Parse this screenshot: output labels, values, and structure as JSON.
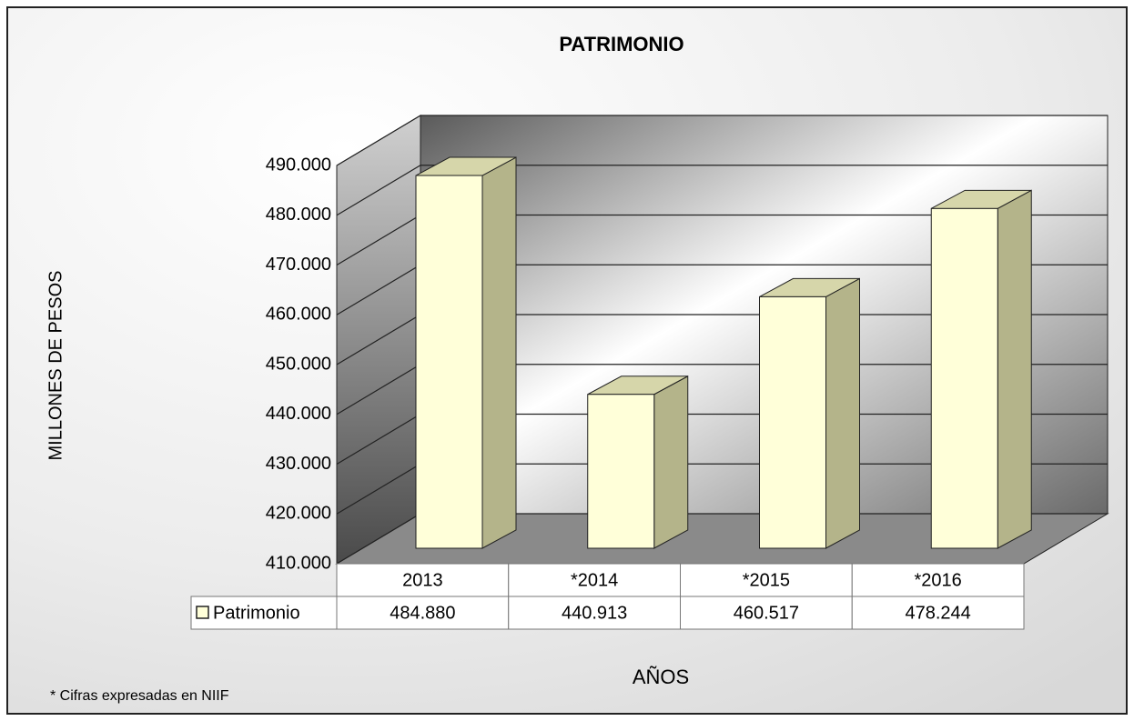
{
  "chart_data": {
    "type": "bar3d",
    "title": "PATRIMONIO",
    "y_label": "MILLONES DE PESOS",
    "x_label": "AÑOS",
    "footnote": "* Cifras expresadas en NIIF",
    "categories": [
      "2013",
      "*2014",
      "*2015",
      "*2016"
    ],
    "series": [
      {
        "name": "Patrimonio",
        "color": "#ffffd9",
        "values": [
          484880,
          440913,
          460517,
          478244
        ],
        "value_labels": [
          "484.880",
          "440.913",
          "460.517",
          "478.244"
        ]
      }
    ],
    "ylim": [
      410000,
      490000
    ],
    "yticks": [
      {
        "value": 410000,
        "label": "410.000"
      },
      {
        "value": 420000,
        "label": "420.000"
      },
      {
        "value": 430000,
        "label": "430.000"
      },
      {
        "value": 440000,
        "label": "440.000"
      },
      {
        "value": 450000,
        "label": "450.000"
      },
      {
        "value": 460000,
        "label": "460.000"
      },
      {
        "value": 470000,
        "label": "470.000"
      },
      {
        "value": 480000,
        "label": "480.000"
      },
      {
        "value": 490000,
        "label": "490.000"
      }
    ],
    "grid": true
  }
}
